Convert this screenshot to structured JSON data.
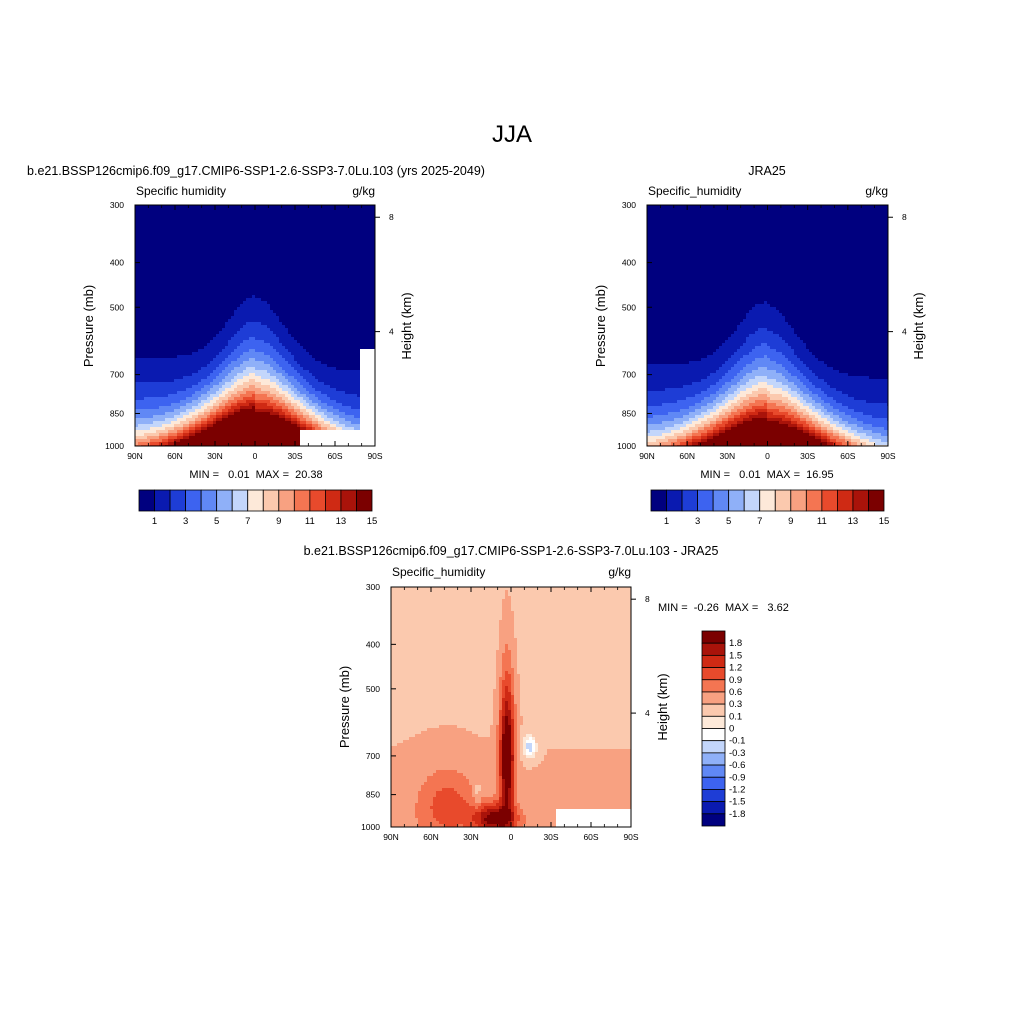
{
  "page_title": "JJA",
  "chart_data": [
    {
      "type": "contour",
      "id": "model",
      "title": "b.e21.BSSP126cmip6.f09_g17.CMIP6-SSP1-2.6-SSP3-7.0Lu.103 (yrs 2025-2049)",
      "left_string": "Specific humidity",
      "right_string": "g/kg",
      "xlabel": "",
      "ylabel": "Pressure (mb)",
      "y2label": "Height (km)",
      "x_ticks": [
        "90N",
        "60N",
        "30N",
        "0",
        "30S",
        "60S",
        "90S"
      ],
      "x_range": [
        90,
        -90
      ],
      "y_ticks": [
        300,
        400,
        500,
        700,
        850,
        1000
      ],
      "y_range": [
        300,
        1000
      ],
      "y_scale": "log",
      "height_ticks": [
        8,
        4
      ],
      "stats_text": "MIN =   0.01  MAX =  20.38",
      "min": 0.01,
      "max": 20.38,
      "peak_lat": -3,
      "colorbar": {
        "orientation": "horizontal",
        "labels": [
          "1",
          "3",
          "5",
          "7",
          "9",
          "11",
          "13",
          "15"
        ],
        "colors": [
          "#00007f",
          "#0a1ab0",
          "#1e3dd6",
          "#3d63f0",
          "#6088f5",
          "#8fb0f8",
          "#c3d6fb",
          "#fde9d9",
          "#fbc9ae",
          "#f8a181",
          "#f47552",
          "#e84a2c",
          "#cf2a14",
          "#a9130a",
          "#7b0000"
        ]
      }
    },
    {
      "type": "contour",
      "id": "obs",
      "title": "JRA25",
      "left_string": "Specific_humidity",
      "right_string": "g/kg",
      "xlabel": "",
      "ylabel": "Pressure (mb)",
      "y2label": "Height (km)",
      "x_ticks": [
        "90N",
        "60N",
        "30N",
        "0",
        "30S",
        "60S",
        "90S"
      ],
      "x_range": [
        90,
        -90
      ],
      "y_ticks": [
        300,
        400,
        500,
        700,
        850,
        1000
      ],
      "y_range": [
        300,
        1000
      ],
      "y_scale": "log",
      "height_ticks": [
        8,
        4
      ],
      "stats_text": "MIN =   0.01  MAX =  16.95",
      "min": 0.01,
      "max": 16.95,
      "peak_lat": -1,
      "colorbar": {
        "orientation": "horizontal",
        "labels": [
          "1",
          "3",
          "5",
          "7",
          "9",
          "11",
          "13",
          "15"
        ],
        "colors": [
          "#00007f",
          "#0a1ab0",
          "#1e3dd6",
          "#3d63f0",
          "#6088f5",
          "#8fb0f8",
          "#c3d6fb",
          "#fde9d9",
          "#fbc9ae",
          "#f8a181",
          "#f47552",
          "#e84a2c",
          "#cf2a14",
          "#a9130a",
          "#7b0000"
        ]
      }
    },
    {
      "type": "contour",
      "id": "diff",
      "title": "b.e21.BSSP126cmip6.f09_g17.CMIP6-SSP1-2.6-SSP3-7.0Lu.103 - JRA25",
      "left_string": "Specific_humidity",
      "right_string": "g/kg",
      "xlabel": "",
      "ylabel": "Pressure (mb)",
      "y2label": "Height (km)",
      "x_ticks": [
        "90N",
        "60N",
        "30N",
        "0",
        "30S",
        "60S",
        "90S"
      ],
      "x_range": [
        90,
        -90
      ],
      "y_ticks": [
        300,
        400,
        500,
        700,
        850,
        1000
      ],
      "y_range": [
        300,
        1000
      ],
      "y_scale": "log",
      "height_ticks": [
        8,
        4
      ],
      "stats_text": "MIN =  -0.26  MAX =   3.62",
      "min": -0.26,
      "max": 3.62,
      "colorbar": {
        "orientation": "vertical",
        "labels": [
          "1.8",
          "1.5",
          "1.2",
          "0.9",
          "0.6",
          "0.3",
          "0.1",
          "0",
          "-0.1",
          "-0.3",
          "-0.6",
          "-0.9",
          "-1.2",
          "-1.5",
          "-1.8"
        ],
        "colors": [
          "#7b0000",
          "#a9130a",
          "#cf2a14",
          "#e84a2c",
          "#f47552",
          "#f8a181",
          "#fbc9ae",
          "#fde9d9",
          "#ffffff",
          "#c3d6fb",
          "#8fb0f8",
          "#6088f5",
          "#3d63f0",
          "#1e3dd6",
          "#0a1ab0",
          "#00007f"
        ]
      }
    }
  ]
}
